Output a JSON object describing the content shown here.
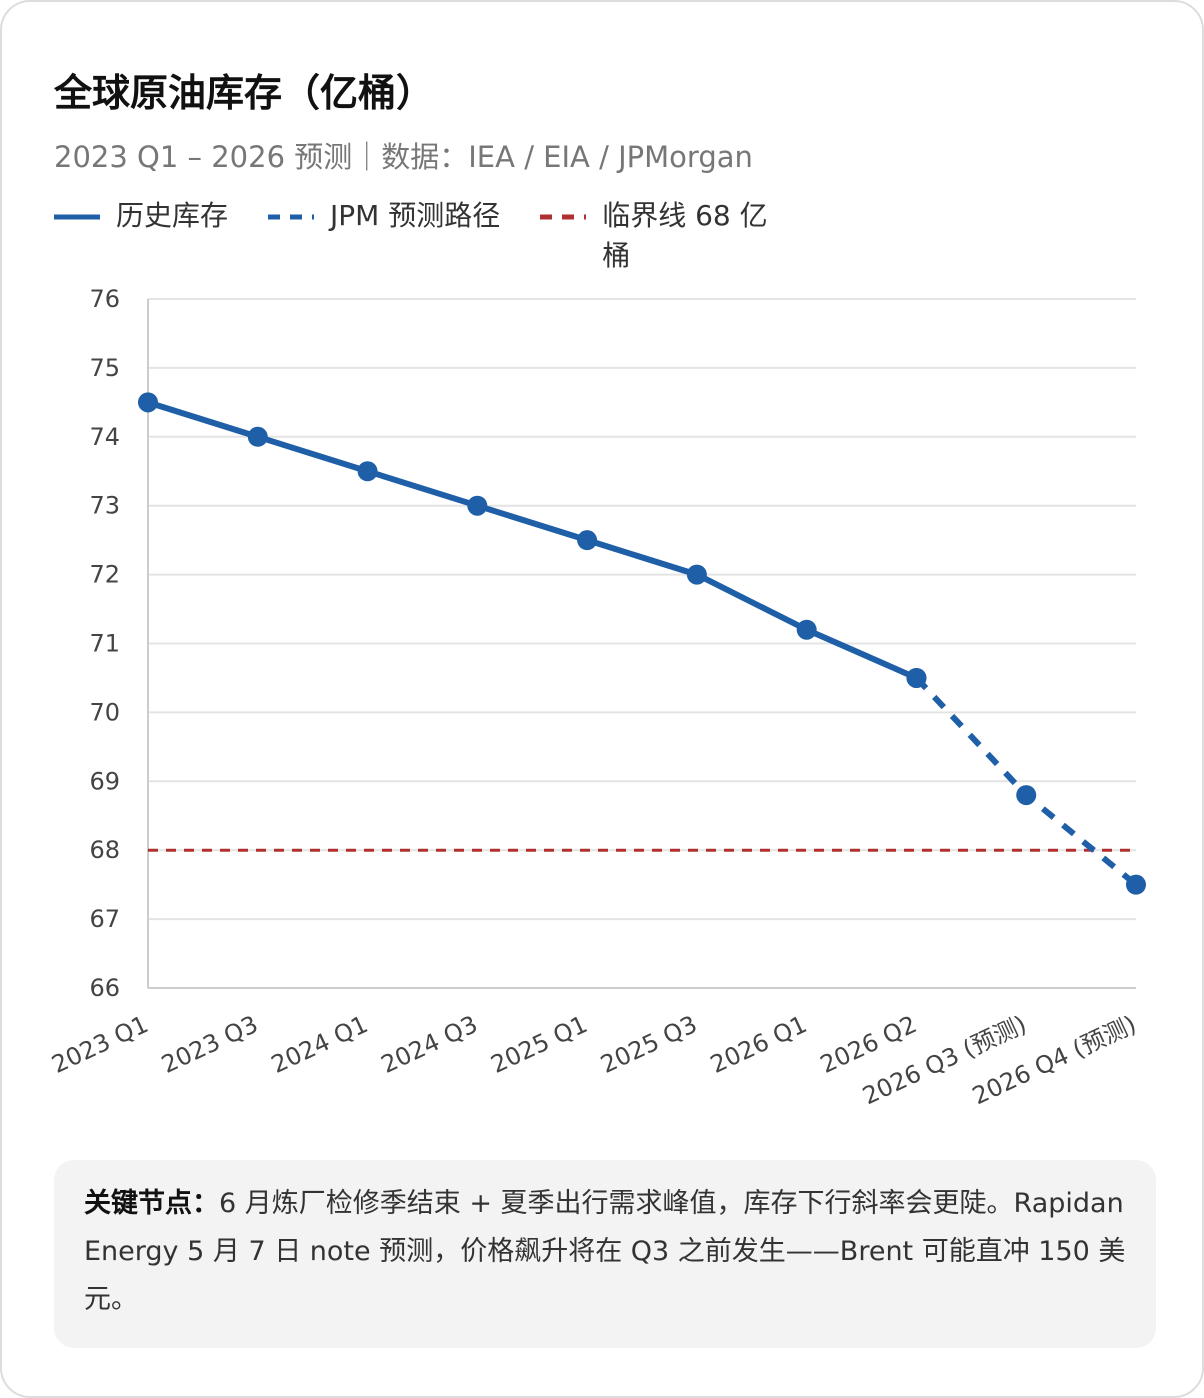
{
  "chart_data": {
    "type": "line",
    "title": "全球原油库存（亿桶）",
    "subtitle": "2023 Q1 – 2026 预测｜数据：IEA / EIA / JPMorgan",
    "categories": [
      "2023 Q1",
      "2023 Q3",
      "2024 Q1",
      "2024 Q3",
      "2025 Q1",
      "2025 Q3",
      "2026 Q1",
      "2026 Q2",
      "2026 Q3 (预测)",
      "2026 Q4 (预测)"
    ],
    "series": [
      {
        "name": "历史库存",
        "color": "#1f5fa8",
        "dashed": false,
        "values": [
          74.5,
          74.0,
          73.5,
          73.0,
          72.5,
          72.0,
          71.2,
          70.5,
          null,
          null
        ]
      },
      {
        "name": "JPM 预测路径",
        "color": "#1f5fa8",
        "dashed": true,
        "values": [
          null,
          null,
          null,
          null,
          null,
          null,
          null,
          70.5,
          68.8,
          67.5
        ]
      }
    ],
    "threshold": {
      "name": "临界线 68 亿桶",
      "value": 68,
      "color": "#b03030"
    },
    "ylim": [
      66,
      76
    ],
    "yticks": [
      66,
      67,
      68,
      69,
      70,
      71,
      72,
      73,
      74,
      75,
      76
    ],
    "grid": true
  },
  "note": {
    "label": "关键节点：",
    "text": "6 月炼厂检修季结束 + 夏季出行需求峰值，库存下行斜率会更陡。Rapidan Energy 5 月 7 日 note 预测，价格飙升将在 Q3 之前发生——Brent 可能直冲 150 美元。"
  }
}
